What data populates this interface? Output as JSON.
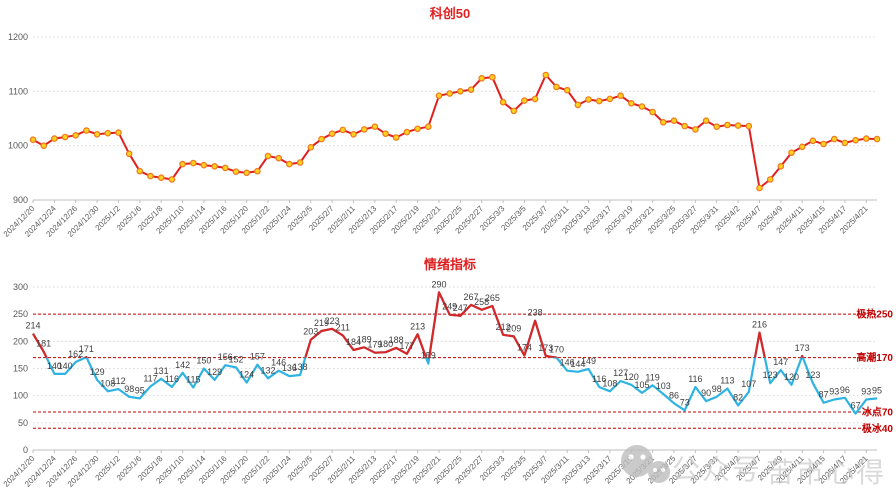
{
  "page": {
    "background": "#ffffff"
  },
  "colors": {
    "grid": "#d9d9d9",
    "axis": "#bfbfbf",
    "axis_text": "#595959",
    "data_label": "#404040",
    "reference_red": "#c00000",
    "index_line": "#e02020",
    "marker_fill": "#ffd21f",
    "marker_stroke": "#f0781e",
    "sentiment_cold": "#2fb3e3",
    "sentiment_hot": "#d92626",
    "title_red": "#e02020"
  },
  "x_labels": [
    "2024/12/20",
    "2024/12/24",
    "2024/12/26",
    "2024/12/30",
    "2025/1/2",
    "2025/1/6",
    "2025/1/8",
    "2025/1/10",
    "2025/1/14",
    "2025/1/16",
    "2025/1/20",
    "2025/1/22",
    "2025/1/24",
    "2025/2/5",
    "2025/2/7",
    "2025/2/11",
    "2025/2/13",
    "2025/2/17",
    "2025/2/19",
    "2025/2/21",
    "2025/2/25",
    "2025/2/27",
    "2025/3/3",
    "2025/3/5",
    "2025/3/7",
    "2025/3/11",
    "2025/3/13",
    "2025/3/17",
    "2025/3/19",
    "2025/3/21",
    "2025/3/25",
    "2025/3/27",
    "2025/3/31",
    "2025/4/2",
    "2025/4/7",
    "2025/4/9",
    "2025/4/11",
    "2025/4/15",
    "2025/4/17",
    "2025/4/21"
  ],
  "chart_data": [
    {
      "type": "line",
      "title": "科创50",
      "ylim": [
        900,
        1200
      ],
      "y_ticks": [
        900,
        1000,
        1100,
        1200
      ],
      "grid": "dotted",
      "legend": "none",
      "x_note": "ticks label every other trading day; series has 80 daily points",
      "values": [
        1011,
        1000,
        1013,
        1016,
        1019,
        1028,
        1021,
        1023,
        1024,
        985,
        953,
        944,
        941,
        938,
        966,
        968,
        964,
        962,
        959,
        952,
        950,
        953,
        981,
        977,
        966,
        969,
        997,
        1012,
        1022,
        1029,
        1021,
        1030,
        1035,
        1022,
        1015,
        1025,
        1031,
        1035,
        1092,
        1096,
        1100,
        1103,
        1124,
        1126,
        1080,
        1064,
        1083,
        1086,
        1130,
        1108,
        1102,
        1075,
        1085,
        1082,
        1086,
        1092,
        1078,
        1072,
        1062,
        1043,
        1046,
        1036,
        1030,
        1046,
        1035,
        1038,
        1037,
        1036,
        922,
        938,
        962,
        987,
        998,
        1009,
        1003,
        1012,
        1005,
        1010,
        1013,
        1012
      ]
    },
    {
      "type": "line",
      "title": "情绪指标",
      "ylim": [
        0,
        300
      ],
      "y_ticks": [
        0,
        50,
        100,
        150,
        200,
        250,
        300
      ],
      "grid": "dotted",
      "legend": "none",
      "threshold": 170,
      "data_labels": true,
      "reference_lines": [
        {
          "value": 250,
          "label": "极热250"
        },
        {
          "value": 170,
          "label": "高潮170"
        },
        {
          "value": 70,
          "label": "冰点70"
        },
        {
          "value": 40,
          "label": "极冰40"
        }
      ],
      "values": [
        214,
        181,
        140,
        140,
        162,
        171,
        129,
        108,
        112,
        98,
        95,
        117,
        131,
        116,
        142,
        115,
        150,
        129,
        156,
        152,
        124,
        157,
        132,
        146,
        136,
        138,
        203,
        219,
        223,
        211,
        184,
        189,
        179,
        180,
        188,
        177,
        213,
        159,
        290,
        249,
        247,
        267,
        258,
        265,
        212,
        209,
        174,
        238,
        173,
        170,
        146,
        144,
        149,
        116,
        108,
        127,
        120,
        105,
        119,
        103,
        86,
        73,
        116,
        90,
        98,
        113,
        82,
        107,
        216,
        123,
        147,
        120,
        173,
        123,
        87,
        93,
        96,
        67,
        93,
        95
      ]
    }
  ],
  "watermark": {
    "icon": "wechat-icon",
    "text1": "公众号",
    "text2": "苦市心得",
    "color": "#c9c9c9"
  }
}
